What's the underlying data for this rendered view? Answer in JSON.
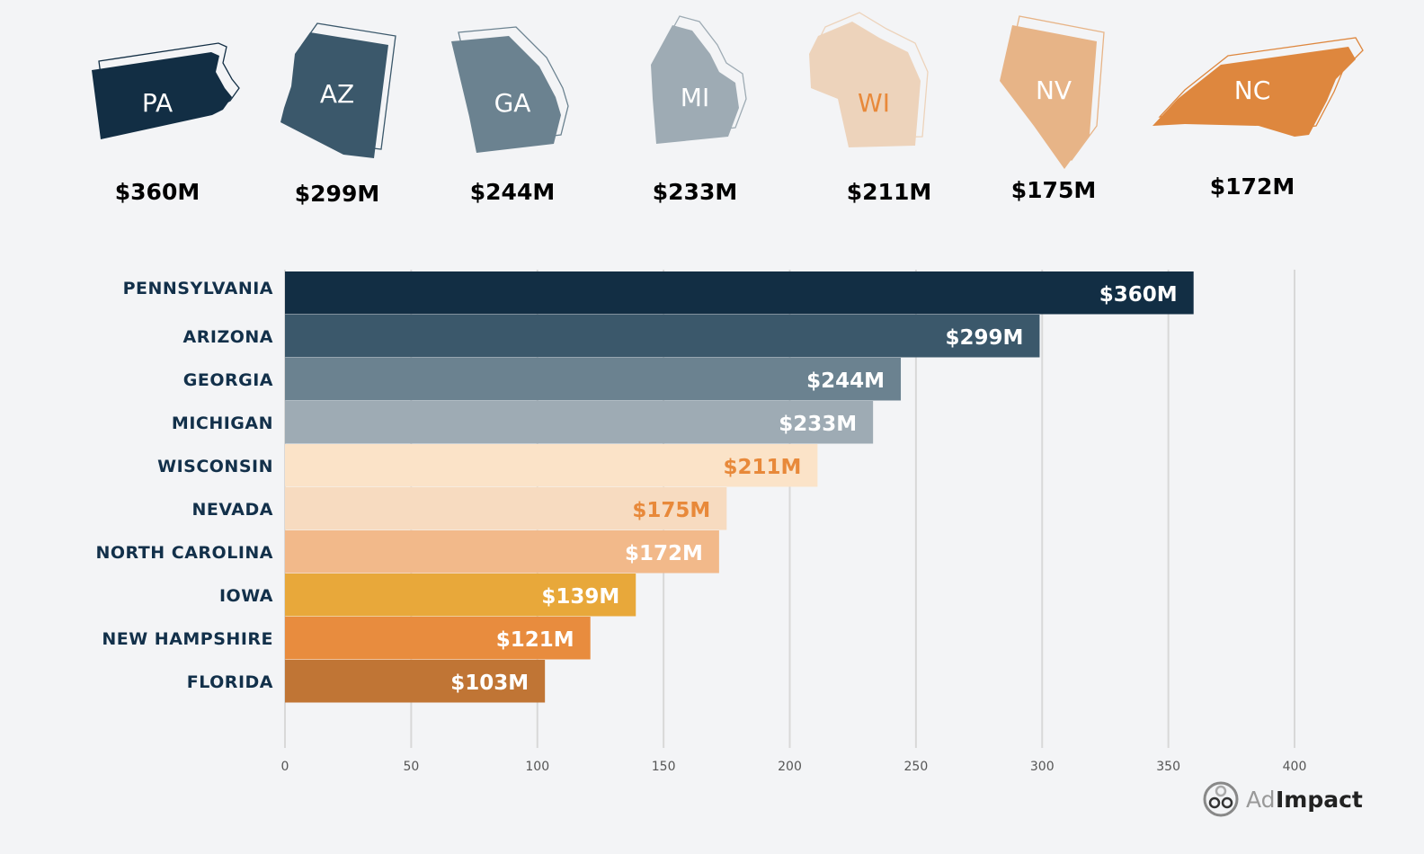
{
  "chart_data": {
    "type": "bar",
    "orientation": "horizontal",
    "categories": [
      "PENNSYLVANIA",
      "ARIZONA",
      "GEORGIA",
      "MICHIGAN",
      "WISCONSIN",
      "NEVADA",
      "NORTH CAROLINA",
      "IOWA",
      "NEW HAMPSHIRE",
      "FLORIDA"
    ],
    "values": [
      360,
      299,
      244,
      233,
      211,
      175,
      172,
      139,
      121,
      103
    ],
    "data_labels": [
      "$360M",
      "$299M",
      "$244M",
      "$233M",
      "$211M",
      "$175M",
      "$172M",
      "$139M",
      "$121M",
      "$103M"
    ],
    "bar_colors": [
      "#122e44",
      "#3b586b",
      "#6b8290",
      "#9eabb4",
      "#fbe3c8",
      "#f7dbc0",
      "#f2b98a",
      "#e8a83a",
      "#e88c3e",
      "#c07535"
    ],
    "label_colors": [
      "#ffffff",
      "#ffffff",
      "#ffffff",
      "#ffffff",
      "#e8893a",
      "#e8893a",
      "#ffffff",
      "#ffffff",
      "#ffffff",
      "#ffffff"
    ],
    "xlim": [
      0,
      400
    ],
    "xticks": [
      "0",
      "50",
      "100",
      "150",
      "200",
      "250",
      "300",
      "350",
      "400"
    ],
    "xtick_values": [
      0,
      50,
      100,
      150,
      200,
      250,
      300,
      350,
      400
    ],
    "grid": "vertical",
    "title": "",
    "xlabel": "",
    "ylabel": ""
  },
  "states": [
    {
      "abbr": "PA",
      "value": "$360M",
      "color": "#122e44",
      "text_color": "#ffffff"
    },
    {
      "abbr": "AZ",
      "value": "$299M",
      "color": "#3b586b",
      "text_color": "#ffffff"
    },
    {
      "abbr": "GA",
      "value": "$244M",
      "color": "#6b8290",
      "text_color": "#ffffff"
    },
    {
      "abbr": "MI",
      "value": "$233M",
      "color": "#9eabb4",
      "text_color": "#ffffff"
    },
    {
      "abbr": "WI",
      "value": "$211M",
      "color": "#edd3bb",
      "text_color": "#e8893a"
    },
    {
      "abbr": "NV",
      "value": "$175M",
      "color": "#e7b487",
      "text_color": "#ffffff"
    },
    {
      "abbr": "NC",
      "value": "$172M",
      "color": "#de873e",
      "text_color": "#ffffff"
    }
  ],
  "logo": {
    "text_light": "Ad",
    "text_bold": "Impact"
  }
}
